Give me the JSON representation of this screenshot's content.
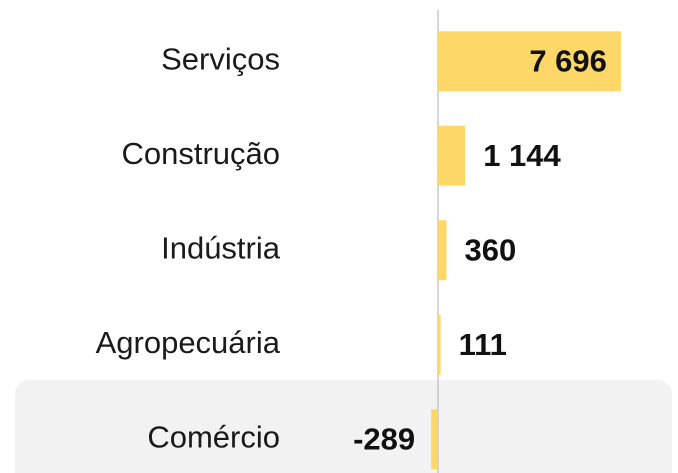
{
  "chart_data": {
    "type": "bar",
    "orientation": "horizontal",
    "categories": [
      "Serviços",
      "Construção",
      "Indústria",
      "Agropecuária",
      "Comércio"
    ],
    "values": [
      7696,
      1144,
      360,
      111,
      -289
    ],
    "value_labels": [
      "7 696",
      "1 144",
      "360",
      "111",
      "-289"
    ],
    "color": "#fdd868"
  }
}
